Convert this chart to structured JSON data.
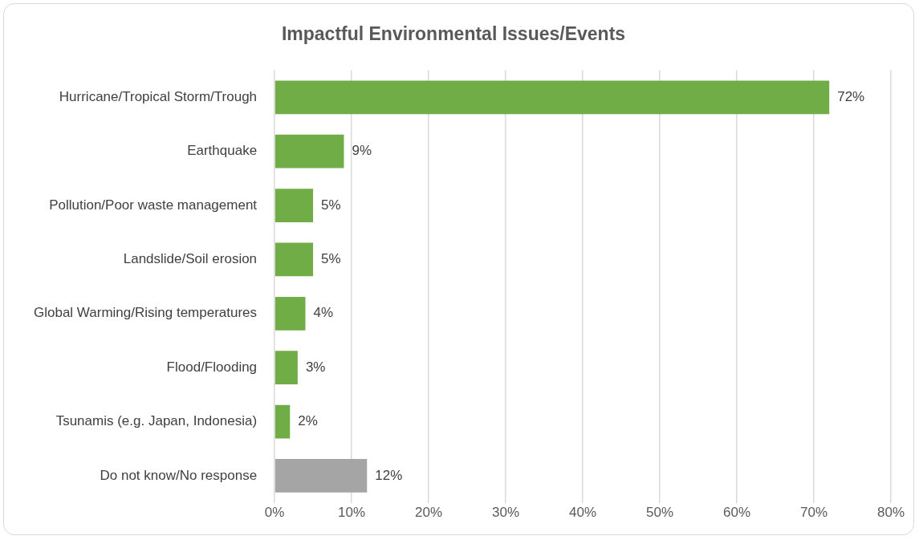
{
  "chart_data": {
    "type": "bar",
    "orientation": "horizontal",
    "title": "Impactful Environmental Issues/Events",
    "categories": [
      "Hurricane/Tropical Storm/Trough",
      "Earthquake",
      "Pollution/Poor waste management",
      "Landslide/Soil erosion",
      "Global Warming/Rising temperatures",
      "Flood/Flooding",
      "Tsunamis (e.g. Japan, Indonesia)",
      "Do not know/No response"
    ],
    "values": [
      72,
      9,
      5,
      5,
      4,
      3,
      2,
      12
    ],
    "value_labels": [
      "72%",
      "9%",
      "5%",
      "5%",
      "4%",
      "3%",
      "2%",
      "12%"
    ],
    "colors": [
      "#70ad47",
      "#70ad47",
      "#70ad47",
      "#70ad47",
      "#70ad47",
      "#70ad47",
      "#70ad47",
      "#a5a5a5"
    ],
    "xlim": [
      0,
      80
    ],
    "xticks": [
      {
        "value": 0,
        "label": "0%"
      },
      {
        "value": 10,
        "label": "10%"
      },
      {
        "value": 20,
        "label": "20%"
      },
      {
        "value": 30,
        "label": "30%"
      },
      {
        "value": 40,
        "label": "40%"
      },
      {
        "value": 50,
        "label": "50%"
      },
      {
        "value": 60,
        "label": "60%"
      },
      {
        "value": 70,
        "label": "70%"
      },
      {
        "value": 80,
        "label": "80%"
      }
    ],
    "grid": "x",
    "legend": false
  }
}
